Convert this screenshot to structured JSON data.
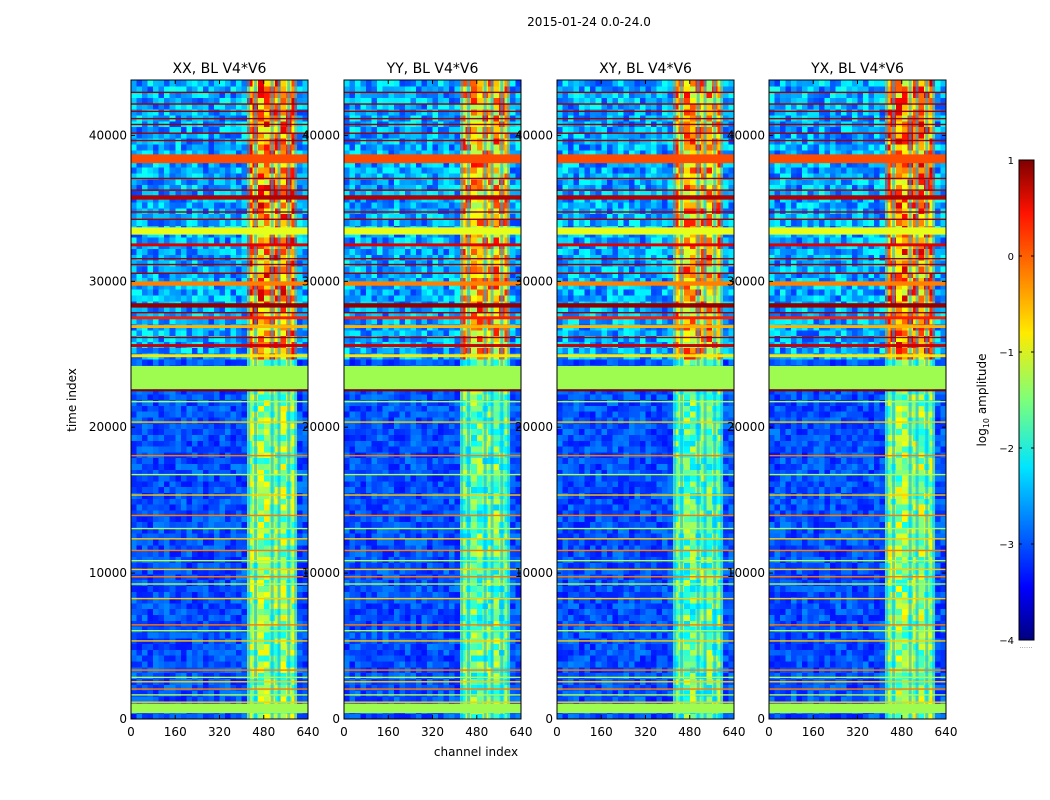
{
  "chart_data": {
    "type": "heatmap",
    "suptitle": "2015-01-24 0.0-24.0",
    "panels": [
      {
        "title": "XX, BL V4*V6",
        "polarization": "XX",
        "show_ylabel": true
      },
      {
        "title": "YY, BL V4*V6",
        "polarization": "YY",
        "show_ylabel": false
      },
      {
        "title": "XY, BL V4*V6",
        "polarization": "XY",
        "show_ylabel": false
      },
      {
        "title": "YX, BL V4*V6",
        "polarization": "YX",
        "show_ylabel": false
      }
    ],
    "xlabel": "channel index",
    "ylabel": "time index",
    "xlim": [
      0,
      640
    ],
    "ylim": [
      0,
      43800
    ],
    "xticks": [
      0,
      160,
      320,
      480,
      640
    ],
    "yticks": [
      0,
      10000,
      20000,
      30000,
      40000
    ],
    "colorbar": {
      "label": "log10 amplitude",
      "label_base": "log",
      "label_sub": "10",
      "label_rest": " amplitude",
      "range": [
        -4,
        1
      ],
      "ticks": [
        1,
        0,
        -1,
        -2,
        -3,
        -4
      ],
      "tick_labels": [
        "1",
        "0",
        "−1",
        "−2",
        "−3",
        "−4"
      ],
      "extra_text": "......"
    },
    "rfi_channel_band": [
      405,
      600
    ],
    "flagged_time_blocks": [
      [
        22600,
        24200
      ],
      [
        38100,
        38700
      ],
      [
        35600,
        35900
      ],
      [
        33200,
        33700
      ],
      [
        32400,
        32600
      ],
      [
        29700,
        30000
      ],
      [
        28200,
        28500
      ],
      [
        27400,
        27600
      ],
      [
        26800,
        27000
      ],
      [
        25500,
        25700
      ],
      [
        24800,
        25000
      ]
    ],
    "flagged_time_lines": [
      43000,
      42200,
      41700,
      41200,
      40800,
      40200,
      39700,
      37100,
      36300,
      34800,
      34300,
      31600,
      31200,
      30600,
      27900,
      26200,
      21800,
      20400,
      18100,
      16800,
      15400,
      14000,
      13100,
      12400,
      11600,
      10900,
      10300,
      9800,
      9300,
      8300,
      6500,
      6100,
      5400,
      3400,
      2900,
      2600,
      2100,
      1700,
      1200
    ]
  }
}
